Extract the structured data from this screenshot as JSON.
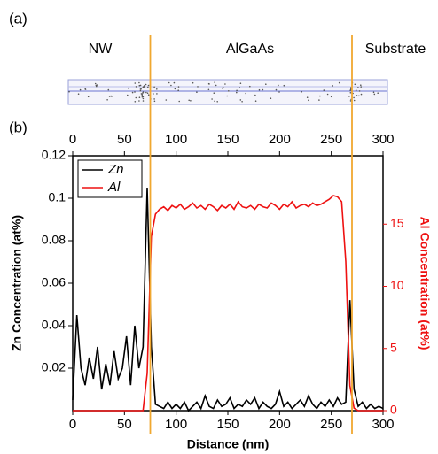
{
  "panel_a": {
    "label": "(a)",
    "regions": [
      "NW",
      "AlGaAs",
      "Substrate"
    ]
  },
  "chart_data": {
    "type": "line",
    "panel_label": "(b)",
    "x_label": "Distance (nm)",
    "y_label": "Zn Concentration (at%)",
    "y2_label": "Al Concentration (at%)",
    "xlim": [
      0,
      300
    ],
    "xticks": [
      0,
      50,
      100,
      150,
      200,
      250,
      300
    ],
    "ylim": [
      0,
      0.12
    ],
    "yticks": [
      0.02,
      0.04,
      0.06,
      0.08,
      {
        "value": 0.1,
        "label": "0.1"
      },
      0.12
    ],
    "y2lim": [
      0,
      20.5
    ],
    "y2ticks": [
      0,
      5,
      10,
      15
    ],
    "interfaces": [
      75,
      270
    ],
    "interface_color": "#f0a830",
    "x": [
      0,
      4,
      8,
      12,
      16,
      20,
      24,
      28,
      32,
      36,
      40,
      44,
      48,
      52,
      56,
      60,
      64,
      68,
      72,
      76,
      80,
      84,
      88,
      92,
      96,
      100,
      104,
      108,
      112,
      116,
      120,
      124,
      128,
      132,
      136,
      140,
      144,
      148,
      152,
      156,
      160,
      164,
      168,
      172,
      176,
      180,
      184,
      188,
      192,
      196,
      200,
      204,
      208,
      212,
      216,
      220,
      224,
      228,
      232,
      236,
      240,
      244,
      248,
      252,
      256,
      260,
      264,
      268,
      272,
      276,
      280,
      284,
      288,
      292,
      296,
      300
    ],
    "series": [
      {
        "name": "Zn",
        "color": "#000000",
        "axis": "y",
        "values": [
          0.005,
          0.045,
          0.02,
          0.012,
          0.025,
          0.015,
          0.03,
          0.01,
          0.022,
          0.012,
          0.028,
          0.015,
          0.02,
          0.035,
          0.012,
          0.04,
          0.02,
          0.03,
          0.105,
          0.03,
          0.003,
          0.002,
          0.001,
          0.004,
          0.001,
          0.003,
          0.001,
          0.004,
          0,
          0.002,
          0.004,
          0.001,
          0.007,
          0.002,
          0.001,
          0.005,
          0.002,
          0.003,
          0.006,
          0.001,
          0.003,
          0.002,
          0.005,
          0.003,
          0.006,
          0.001,
          0.004,
          0.002,
          0.001,
          0.003,
          0.009,
          0.002,
          0.004,
          0.001,
          0.003,
          0.005,
          0.002,
          0.007,
          0.003,
          0.001,
          0.004,
          0.002,
          0.005,
          0.002,
          0.006,
          0.003,
          0.004,
          0.052,
          0.01,
          0.002,
          0.004,
          0.001,
          0.003,
          0.001,
          0.002,
          0.001
        ]
      },
      {
        "name": "Al",
        "color": "#ee1111",
        "axis": "y2",
        "values": [
          0,
          0,
          0,
          0,
          0,
          0,
          0,
          0,
          0,
          0,
          0,
          0,
          0,
          0,
          0,
          0,
          0,
          0,
          3,
          14,
          15.8,
          16.2,
          16.4,
          16.1,
          16.5,
          16.3,
          16.6,
          16.2,
          16.4,
          16.7,
          16.3,
          16.5,
          16.2,
          16.6,
          16.4,
          16.1,
          16.5,
          16.3,
          16.6,
          16.2,
          16.8,
          16.4,
          16.3,
          16.5,
          16.2,
          16.6,
          16.4,
          16.3,
          16.7,
          16.5,
          16.2,
          16.6,
          16.4,
          16.8,
          16.3,
          16.5,
          16.6,
          16.4,
          16.7,
          16.5,
          16.6,
          16.8,
          17.0,
          17.3,
          17.2,
          16.8,
          12,
          2,
          0.2,
          0,
          0,
          0,
          0,
          0,
          0,
          0
        ]
      }
    ]
  }
}
